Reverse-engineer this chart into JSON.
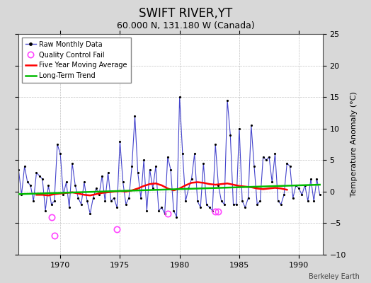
{
  "title": "SWIFT RIVER,YT",
  "subtitle": "60.000 N, 131.180 W (Canada)",
  "ylabel": "Temperature Anomaly (°C)",
  "watermark": "Berkeley Earth",
  "xlim": [
    1966.5,
    1992.0
  ],
  "ylim": [
    -10,
    25
  ],
  "yticks": [
    -10,
    -5,
    0,
    5,
    10,
    15,
    20,
    25
  ],
  "xticks": [
    1970,
    1975,
    1980,
    1985,
    1990
  ],
  "bg_color": "#d8d8d8",
  "plot_bg": "#ffffff",
  "raw_color": "#4444cc",
  "ma_color": "#ff0000",
  "trend_color": "#00bb00",
  "qc_color": "#ff44ff",
  "raw_data": [
    [
      1966.5,
      3.5
    ],
    [
      1966.75,
      -0.5
    ],
    [
      1967.0,
      4.0
    ],
    [
      1967.25,
      1.5
    ],
    [
      1967.5,
      1.0
    ],
    [
      1967.75,
      -1.5
    ],
    [
      1968.0,
      3.0
    ],
    [
      1968.25,
      2.5
    ],
    [
      1968.5,
      2.0
    ],
    [
      1968.75,
      -3.0
    ],
    [
      1969.0,
      1.0
    ],
    [
      1969.25,
      -2.0
    ],
    [
      1969.5,
      -1.5
    ],
    [
      1969.75,
      7.5
    ],
    [
      1970.0,
      6.0
    ],
    [
      1970.25,
      -0.5
    ],
    [
      1970.5,
      1.5
    ],
    [
      1970.75,
      -2.5
    ],
    [
      1971.0,
      4.5
    ],
    [
      1971.25,
      1.0
    ],
    [
      1971.5,
      -1.0
    ],
    [
      1971.75,
      -2.0
    ],
    [
      1972.0,
      1.5
    ],
    [
      1972.25,
      -1.5
    ],
    [
      1972.5,
      -3.5
    ],
    [
      1972.75,
      -1.0
    ],
    [
      1973.0,
      0.5
    ],
    [
      1973.25,
      -0.5
    ],
    [
      1973.5,
      2.5
    ],
    [
      1973.75,
      -1.5
    ],
    [
      1974.0,
      3.0
    ],
    [
      1974.25,
      -1.5
    ],
    [
      1974.5,
      -1.0
    ],
    [
      1974.75,
      -2.5
    ],
    [
      1975.0,
      8.0
    ],
    [
      1975.25,
      1.5
    ],
    [
      1975.5,
      -2.0
    ],
    [
      1975.75,
      -1.0
    ],
    [
      1976.0,
      4.0
    ],
    [
      1976.25,
      12.0
    ],
    [
      1976.5,
      3.0
    ],
    [
      1976.75,
      -1.0
    ],
    [
      1977.0,
      5.0
    ],
    [
      1977.25,
      -3.0
    ],
    [
      1977.5,
      3.5
    ],
    [
      1977.75,
      0.5
    ],
    [
      1978.0,
      4.0
    ],
    [
      1978.25,
      -3.0
    ],
    [
      1978.5,
      -2.5
    ],
    [
      1978.75,
      -3.5
    ],
    [
      1979.0,
      5.5
    ],
    [
      1979.25,
      3.5
    ],
    [
      1979.5,
      -3.0
    ],
    [
      1979.75,
      -4.0
    ],
    [
      1980.0,
      15.0
    ],
    [
      1980.25,
      6.0
    ],
    [
      1980.5,
      -1.5
    ],
    [
      1980.75,
      0.5
    ],
    [
      1981.0,
      2.0
    ],
    [
      1981.25,
      6.0
    ],
    [
      1981.5,
      -1.5
    ],
    [
      1981.75,
      -2.5
    ],
    [
      1982.0,
      4.5
    ],
    [
      1982.25,
      -2.0
    ],
    [
      1982.5,
      -2.5
    ],
    [
      1982.75,
      -3.0
    ],
    [
      1983.0,
      7.5
    ],
    [
      1983.25,
      1.0
    ],
    [
      1983.5,
      -1.5
    ],
    [
      1983.75,
      -2.0
    ],
    [
      1984.0,
      14.5
    ],
    [
      1984.25,
      9.0
    ],
    [
      1984.5,
      -2.0
    ],
    [
      1984.75,
      -2.0
    ],
    [
      1985.0,
      10.0
    ],
    [
      1985.25,
      -1.5
    ],
    [
      1985.5,
      -2.5
    ],
    [
      1985.75,
      -1.0
    ],
    [
      1986.0,
      10.5
    ],
    [
      1986.25,
      4.0
    ],
    [
      1986.5,
      -2.0
    ],
    [
      1986.75,
      -1.5
    ],
    [
      1987.0,
      5.5
    ],
    [
      1987.25,
      5.0
    ],
    [
      1987.5,
      5.5
    ],
    [
      1987.75,
      1.5
    ],
    [
      1988.0,
      6.0
    ],
    [
      1988.25,
      -1.5
    ],
    [
      1988.5,
      -2.0
    ],
    [
      1988.75,
      -0.5
    ],
    [
      1989.0,
      4.5
    ],
    [
      1989.25,
      4.0
    ],
    [
      1989.5,
      -1.0
    ],
    [
      1989.75,
      1.0
    ],
    [
      1990.0,
      0.5
    ],
    [
      1990.25,
      -0.5
    ],
    [
      1990.5,
      1.0
    ],
    [
      1990.75,
      -1.5
    ],
    [
      1991.0,
      2.0
    ],
    [
      1991.25,
      -1.5
    ],
    [
      1991.5,
      2.0
    ],
    [
      1991.75,
      -0.5
    ]
  ],
  "ma_data": [
    [
      1968.0,
      -0.5
    ],
    [
      1968.5,
      -0.5
    ],
    [
      1969.0,
      -0.6
    ],
    [
      1969.5,
      -0.4
    ],
    [
      1970.0,
      -0.3
    ],
    [
      1970.5,
      -0.2
    ],
    [
      1971.0,
      -0.1
    ],
    [
      1971.5,
      -0.3
    ],
    [
      1972.0,
      -0.5
    ],
    [
      1972.5,
      -0.6
    ],
    [
      1973.0,
      -0.4
    ],
    [
      1973.5,
      -0.2
    ],
    [
      1974.0,
      -0.1
    ],
    [
      1974.5,
      0.0
    ],
    [
      1975.0,
      0.1
    ],
    [
      1975.5,
      0.0
    ],
    [
      1976.0,
      0.2
    ],
    [
      1976.5,
      0.5
    ],
    [
      1977.0,
      0.9
    ],
    [
      1977.5,
      1.2
    ],
    [
      1978.0,
      1.3
    ],
    [
      1978.5,
      1.0
    ],
    [
      1979.0,
      0.5
    ],
    [
      1979.5,
      0.2
    ],
    [
      1980.0,
      0.5
    ],
    [
      1980.5,
      1.0
    ],
    [
      1981.0,
      1.4
    ],
    [
      1981.5,
      1.5
    ],
    [
      1982.0,
      1.4
    ],
    [
      1982.5,
      1.2
    ],
    [
      1983.0,
      1.1
    ],
    [
      1983.5,
      1.2
    ],
    [
      1984.0,
      1.3
    ],
    [
      1984.5,
      1.1
    ],
    [
      1985.0,
      0.9
    ],
    [
      1985.5,
      0.8
    ],
    [
      1986.0,
      0.7
    ],
    [
      1986.5,
      0.5
    ],
    [
      1987.0,
      0.4
    ],
    [
      1987.5,
      0.5
    ],
    [
      1988.0,
      0.6
    ],
    [
      1988.5,
      0.5
    ],
    [
      1989.0,
      0.3
    ]
  ],
  "trend_data": [
    [
      1966.5,
      -0.4
    ],
    [
      1991.75,
      1.1
    ]
  ],
  "qc_fail_points": [
    [
      1969.25,
      -4.0
    ],
    [
      1969.5,
      -7.0
    ],
    [
      1974.75,
      -6.0
    ],
    [
      1979.0,
      -3.5
    ],
    [
      1983.0,
      -3.2
    ],
    [
      1983.25,
      -3.2
    ]
  ],
  "legend_loc": "upper left",
  "title_fontsize": 12,
  "subtitle_fontsize": 9,
  "ylabel_fontsize": 8,
  "tick_labelsize": 8,
  "legend_fontsize": 7,
  "watermark_fontsize": 7
}
